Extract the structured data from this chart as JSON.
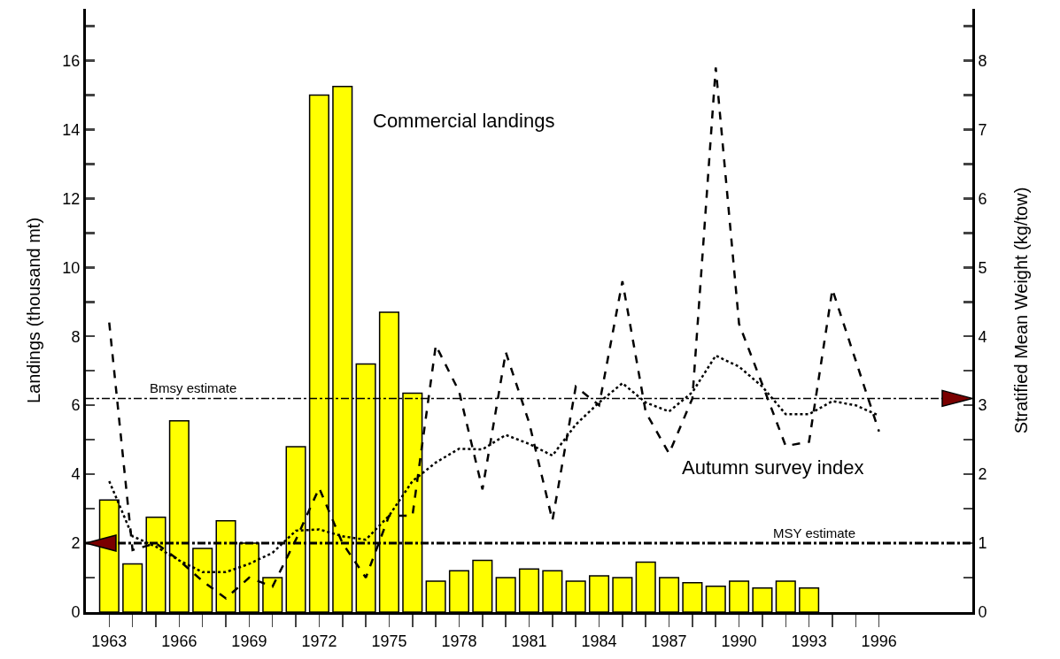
{
  "chart_data": {
    "type": "bar",
    "xlabel": null,
    "ylabel": "Landings (thousand mt)",
    "y2label": "Stratified Mean Weight (kg/tow)",
    "x": [
      1963,
      1964,
      1965,
      1966,
      1967,
      1968,
      1969,
      1970,
      1971,
      1972,
      1973,
      1974,
      1975,
      1976,
      1977,
      1978,
      1979,
      1980,
      1981,
      1982,
      1983,
      1984,
      1985,
      1986,
      1987,
      1988,
      1989,
      1990,
      1991,
      1992,
      1993
    ],
    "series": [
      {
        "color": "#ffff00",
        "values": [
          3.25,
          1.4,
          2.75,
          5.55,
          1.85,
          2.65,
          2.0,
          1.0,
          4.8,
          15.0,
          15.25,
          7.2,
          8.7,
          6.35,
          0.9,
          1.2,
          1.5,
          1.0,
          1.25,
          1.2,
          0.9,
          1.05,
          1.0,
          1.45,
          1.0,
          0.85,
          0.75,
          0.9,
          0.7,
          0.9,
          0.7
        ]
      },
      {
        "type": "line",
        "axis": "y2",
        "color": "#000000",
        "line_style": "dashed",
        "x": [
          1963,
          1964,
          1965,
          1966,
          1967,
          1968,
          1969,
          1970,
          1971,
          1972,
          1973,
          1974,
          1975,
          1976,
          1977,
          1978,
          1979,
          1980,
          1981,
          1982,
          1983,
          1984,
          1985,
          1986,
          1987,
          1988,
          1989,
          1990,
          1991,
          1992,
          1993,
          1994,
          1995,
          1996
        ],
        "values": [
          4.2,
          0.9,
          1.0,
          0.75,
          0.45,
          0.2,
          0.5,
          0.37,
          1.05,
          1.8,
          1.0,
          0.5,
          1.4,
          1.4,
          3.87,
          3.2,
          1.78,
          3.77,
          2.75,
          1.33,
          3.27,
          3.0,
          4.8,
          2.9,
          2.3,
          3.1,
          7.9,
          4.18,
          3.3,
          2.41,
          2.47,
          4.68,
          3.65,
          2.62
        ]
      },
      {
        "type": "line",
        "axis": "y2",
        "color": "#000000",
        "line_style": "dotted",
        "x": [
          1963,
          1964,
          1965,
          1966,
          1967,
          1968,
          1969,
          1970,
          1971,
          1972,
          1973,
          1974,
          1975,
          1976,
          1977,
          1978,
          1979,
          1980,
          1981,
          1982,
          1983,
          1984,
          1985,
          1986,
          1987,
          1988,
          1989,
          1990,
          1991,
          1992,
          1993,
          1994,
          1995,
          1996
        ],
        "values": [
          1.9,
          1.1,
          0.95,
          0.75,
          0.58,
          0.58,
          0.7,
          0.86,
          1.18,
          1.2,
          1.1,
          1.05,
          1.4,
          1.9,
          2.17,
          2.37,
          2.36,
          2.57,
          2.44,
          2.27,
          2.72,
          3.04,
          3.32,
          3.04,
          2.91,
          3.19,
          3.72,
          3.56,
          3.27,
          2.87,
          2.87,
          3.06,
          3.0,
          2.85
        ]
      }
    ],
    "xlim": [
      1962,
      2000
    ],
    "xticks": [
      1963,
      {
        "value": 1964,
        "label": null
      },
      {
        "value": 1965,
        "label": null
      },
      1966,
      {
        "value": 1967,
        "label": null
      },
      {
        "value": 1968,
        "label": null
      },
      1969,
      {
        "value": 1970,
        "label": null
      },
      {
        "value": 1971,
        "label": null
      },
      1972,
      {
        "value": 1973,
        "label": null
      },
      {
        "value": 1974,
        "label": null
      },
      1975,
      {
        "value": 1976,
        "label": null
      },
      {
        "value": 1977,
        "label": null
      },
      1978,
      {
        "value": 1979,
        "label": null
      },
      {
        "value": 1980,
        "label": null
      },
      1981,
      {
        "value": 1982,
        "label": null
      },
      {
        "value": 1983,
        "label": null
      },
      1984,
      {
        "value": 1985,
        "label": null
      },
      {
        "value": 1986,
        "label": null
      },
      1987,
      {
        "value": 1988,
        "label": null
      },
      {
        "value": 1989,
        "label": null
      },
      1990,
      {
        "value": 1991,
        "label": null
      },
      {
        "value": 1992,
        "label": null
      },
      1993,
      {
        "value": 1994,
        "label": null
      },
      {
        "value": 1995,
        "label": null
      },
      1996
    ],
    "ylim": [
      0,
      17.5
    ],
    "yticks": [
      0,
      {
        "value": 1,
        "label": null
      },
      2,
      {
        "value": 3,
        "label": null
      },
      4,
      {
        "value": 5,
        "label": null
      },
      6,
      {
        "value": 7,
        "label": null
      },
      8,
      {
        "value": 9,
        "label": null
      },
      10,
      {
        "value": 11,
        "label": null
      },
      12,
      {
        "value": 13,
        "label": null
      },
      14,
      {
        "value": 15,
        "label": null
      },
      16,
      {
        "value": 17,
        "label": null
      }
    ],
    "y2lim": [
      0,
      8.75
    ],
    "y2ticks": [
      0,
      {
        "value": 0.5,
        "label": null
      },
      1,
      {
        "value": 1.5,
        "label": null
      },
      2,
      {
        "value": 2.5,
        "label": null
      },
      3,
      {
        "value": 3.5,
        "label": null
      },
      4,
      {
        "value": 4.5,
        "label": null
      },
      5,
      {
        "value": 5.5,
        "label": null
      },
      6,
      {
        "value": 6.5,
        "label": null
      },
      7,
      {
        "value": 7.5,
        "label": null
      },
      8,
      {
        "value": 8.5,
        "label": null
      }
    ],
    "ref_lines": [
      {
        "axis": "y2",
        "value": 3.1,
        "label": "Bmsy estimate",
        "line_style": "dashed"
      },
      {
        "axis": "y",
        "value": 2,
        "label": "MSY estimate",
        "line_style": "dashed"
      }
    ],
    "annotations": [
      "Commercial landings",
      "Autumn survey index"
    ],
    "grid": false
  }
}
